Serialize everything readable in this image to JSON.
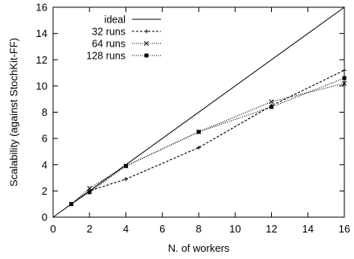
{
  "chart_data": {
    "type": "line",
    "title": "",
    "xlabel": "N. of workers",
    "ylabel": "Scalability (against StochKit-FF)",
    "xlim": [
      0,
      16
    ],
    "ylim": [
      0,
      16
    ],
    "xticks": [
      "0",
      "2",
      "4",
      "6",
      "8",
      "10",
      "12",
      "14",
      "16"
    ],
    "yticks": [
      "0",
      "2",
      "4",
      "6",
      "8",
      "10",
      "12",
      "14",
      "16"
    ],
    "grid": false,
    "legend_position": "top-left",
    "series": [
      {
        "name": "ideal",
        "style": "solid",
        "marker": "none",
        "x": [
          0,
          16
        ],
        "y": [
          0,
          16
        ]
      },
      {
        "name": "32 runs",
        "style": "dashed",
        "marker": "plus",
        "x": [
          1,
          2,
          4,
          8,
          12,
          16
        ],
        "y": [
          1.0,
          2.0,
          2.9,
          5.3,
          8.5,
          11.2
        ]
      },
      {
        "name": "64 runs",
        "style": "dotted",
        "marker": "cross",
        "x": [
          1,
          2,
          4,
          8,
          12,
          16
        ],
        "y": [
          1.0,
          2.2,
          3.9,
          6.5,
          8.8,
          10.2
        ]
      },
      {
        "name": "128 runs",
        "style": "dotted",
        "marker": "square",
        "x": [
          1,
          2,
          4,
          8,
          12,
          16
        ],
        "y": [
          1.0,
          1.9,
          3.9,
          6.5,
          8.4,
          10.6
        ]
      }
    ]
  }
}
